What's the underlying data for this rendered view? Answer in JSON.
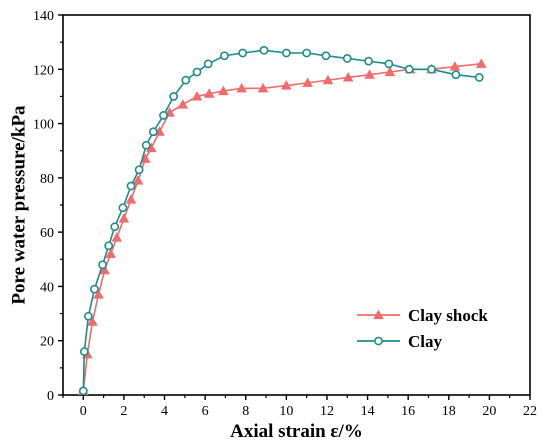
{
  "chart_data": {
    "type": "line",
    "xlabel": "Axial strain ε/%",
    "ylabel": "Pore water pressure/kPa",
    "xlim": [
      -1,
      22
    ],
    "ylim": [
      0,
      140
    ],
    "xticks": [
      0,
      2,
      4,
      6,
      8,
      10,
      12,
      14,
      16,
      18,
      20,
      22
    ],
    "yticks": [
      0,
      20,
      40,
      60,
      80,
      100,
      120,
      140
    ],
    "grid": false,
    "legend": "bottom-right",
    "series": [
      {
        "name": "Clay shock",
        "color": "#f06b6b",
        "marker": "triangle",
        "x": [
          0,
          0.2,
          0.45,
          0.75,
          1.05,
          1.35,
          1.65,
          2.0,
          2.35,
          2.7,
          3.05,
          3.35,
          3.75,
          4.25,
          4.9,
          5.6,
          6.2,
          6.9,
          7.8,
          8.85,
          10.0,
          11.05,
          12.05,
          13.05,
          14.1,
          15.1,
          16.1,
          17.15,
          18.3,
          19.6
        ],
        "y": [
          1.5,
          15,
          27,
          37,
          46,
          52,
          58,
          65,
          72,
          79,
          87,
          91,
          97,
          104,
          107,
          110,
          111,
          112,
          113,
          113,
          114,
          115,
          116,
          117,
          118,
          119,
          120,
          120,
          121,
          122
        ]
      },
      {
        "name": "Clay",
        "color": "#1e8c8c",
        "marker": "circle",
        "x": [
          0,
          0.05,
          0.25,
          0.55,
          0.95,
          1.25,
          1.55,
          1.95,
          2.35,
          2.75,
          3.1,
          3.45,
          3.95,
          4.45,
          5.05,
          5.6,
          6.15,
          6.95,
          7.85,
          8.9,
          10.0,
          11.0,
          11.95,
          13.0,
          14.05,
          15.05,
          16.05,
          17.15,
          18.35,
          19.5
        ],
        "y": [
          1.5,
          16,
          29,
          39,
          48,
          55,
          62,
          69,
          77,
          83,
          92,
          97,
          103,
          110,
          116,
          119,
          122,
          125,
          126,
          127,
          126,
          126,
          125,
          124,
          123,
          122,
          120,
          120,
          118,
          117
        ]
      }
    ]
  }
}
